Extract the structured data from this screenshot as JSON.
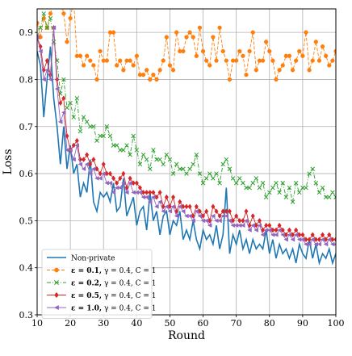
{
  "chart_data": {
    "type": "line",
    "xlabel": "Round",
    "ylabel": "Loss",
    "xlim": [
      10,
      100
    ],
    "ylim": [
      0.3,
      0.95
    ],
    "x_ticks": [
      "10",
      "20",
      "30",
      "40",
      "50",
      "60",
      "70",
      "80",
      "90",
      "100"
    ],
    "y_ticks": [
      "0.3",
      "0.4",
      "0.5",
      "0.6",
      "0.7",
      "0.8",
      "0.9"
    ],
    "grid": true,
    "legend_position": "lower-left",
    "x_start": 10,
    "series": [
      {
        "name": "Non-private",
        "label_parts": {
          "eps": "",
          "rest": "Non-private"
        },
        "color": "#1f77b4",
        "linestyle": "solid",
        "marker": "none",
        "values": [
          0.86,
          0.83,
          0.72,
          0.8,
          0.87,
          0.76,
          0.7,
          0.62,
          0.7,
          0.61,
          0.66,
          0.6,
          0.62,
          0.55,
          0.58,
          0.56,
          0.63,
          0.54,
          0.52,
          0.56,
          0.55,
          0.56,
          0.54,
          0.58,
          0.52,
          0.53,
          0.59,
          0.51,
          0.53,
          0.55,
          0.49,
          0.52,
          0.53,
          0.48,
          0.56,
          0.5,
          0.52,
          0.47,
          0.51,
          0.52,
          0.47,
          0.5,
          0.49,
          0.52,
          0.46,
          0.48,
          0.46,
          0.5,
          0.46,
          0.44,
          0.48,
          0.46,
          0.47,
          0.45,
          0.49,
          0.44,
          0.47,
          0.57,
          0.43,
          0.47,
          0.45,
          0.48,
          0.44,
          0.46,
          0.43,
          0.46,
          0.44,
          0.45,
          0.44,
          0.48,
          0.43,
          0.46,
          0.42,
          0.45,
          0.43,
          0.44,
          0.42,
          0.44,
          0.41,
          0.45,
          0.43,
          0.42,
          0.46,
          0.42,
          0.45,
          0.41,
          0.43,
          0.42,
          0.44,
          0.41,
          0.43,
          0.42,
          0.41,
          0.43,
          0.42,
          0.41,
          0.43,
          0.42,
          0.41,
          0.43,
          0.42,
          0.43,
          0.42,
          0.41,
          0.42,
          0.41,
          0.43,
          0.42,
          0.41,
          0.42,
          0.4,
          0.42,
          0.41,
          0.43,
          0.42,
          0.41,
          0.42,
          0.43,
          0.42,
          0.43,
          0.42,
          0.41,
          0.42,
          0.43,
          0.42,
          0.41,
          0.42,
          0.41,
          0.4,
          0.41,
          0.42,
          0.41,
          0.42,
          0.41,
          0.42,
          0.41,
          0.4,
          0.42,
          0.41,
          0.42,
          0.41,
          0.42,
          0.4,
          0.42,
          0.41,
          0.43,
          0.41,
          0.42,
          0.41,
          0.4,
          0.41,
          0.42,
          0.41,
          0.42,
          0.41,
          0.42,
          0.41,
          0.42,
          0.43,
          0.42,
          0.41,
          0.42,
          0.41,
          0.42,
          0.41,
          0.43,
          0.42,
          0.41,
          0.42,
          0.41,
          0.42,
          0.41,
          0.42,
          0.41
        ]
      },
      {
        "name": "ε = 0.1, γ = 0.4, C = 1",
        "label_parts": {
          "eps": "ε = 0.1,",
          "rest": " γ = 0.4, C = 1"
        },
        "color": "#ff7f0e",
        "linestyle": "dashed",
        "marker": "circle",
        "values": [
          0.92,
          0.89,
          0.93,
          0.91,
          0.94,
          0.96,
          0.97,
          0.97,
          0.94,
          0.88,
          0.93,
          0.97,
          0.85,
          0.85,
          0.83,
          0.85,
          0.84,
          0.83,
          0.8,
          0.86,
          0.84,
          0.84,
          0.9,
          0.9,
          0.83,
          0.84,
          0.82,
          0.84,
          0.84,
          0.83,
          0.85,
          0.81,
          0.81,
          0.82,
          0.8,
          0.81,
          0.8,
          0.82,
          0.84,
          0.89,
          0.83,
          0.82,
          0.9,
          0.86,
          0.86,
          0.89,
          0.9,
          0.89,
          0.85,
          0.91,
          0.86,
          0.84,
          0.83,
          0.89,
          0.84,
          0.91,
          0.86,
          0.84,
          0.8,
          0.84,
          0.84,
          0.86,
          0.85,
          0.81,
          0.86,
          0.9,
          0.82,
          0.84,
          0.84,
          0.88,
          0.86,
          0.84,
          0.8,
          0.82,
          0.83,
          0.85,
          0.85,
          0.82,
          0.84,
          0.86,
          0.85,
          0.9,
          0.82,
          0.84,
          0.88,
          0.84,
          0.87,
          0.85,
          0.83,
          0.84,
          0.86,
          0.82,
          0.88,
          0.9,
          0.95,
          0.93,
          0.88,
          0.87,
          0.87,
          0.88
        ]
      },
      {
        "name": "ε = 0.2, γ = 0.4, C = 1",
        "label_parts": {
          "eps": "ε = 0.2,",
          "rest": " γ = 0.4, C = 1"
        },
        "color": "#2ca02c",
        "linestyle": "dashdot",
        "marker": "x",
        "values": [
          0.89,
          0.91,
          0.94,
          0.91,
          0.93,
          0.88,
          0.84,
          0.77,
          0.8,
          0.74,
          0.75,
          0.72,
          0.76,
          0.69,
          0.72,
          0.71,
          0.7,
          0.7,
          0.67,
          0.68,
          0.68,
          0.7,
          0.68,
          0.66,
          0.66,
          0.65,
          0.65,
          0.66,
          0.64,
          0.68,
          0.65,
          0.62,
          0.64,
          0.63,
          0.61,
          0.65,
          0.63,
          0.63,
          0.62,
          0.64,
          0.63,
          0.6,
          0.62,
          0.61,
          0.61,
          0.6,
          0.61,
          0.62,
          0.64,
          0.6,
          0.58,
          0.59,
          0.6,
          0.59,
          0.6,
          0.58,
          0.62,
          0.63,
          0.61,
          0.59,
          0.58,
          0.59,
          0.58,
          0.57,
          0.57,
          0.58,
          0.59,
          0.57,
          0.58,
          0.55,
          0.56,
          0.57,
          0.58,
          0.56,
          0.58,
          0.55,
          0.57,
          0.54,
          0.58,
          0.56,
          0.57,
          0.57,
          0.6,
          0.61,
          0.58,
          0.56,
          0.57,
          0.55,
          0.55,
          0.56,
          0.55,
          0.56,
          0.55,
          0.55,
          0.56
        ]
      },
      {
        "name": "ε = 0.5, γ = 0.4, C = 1",
        "label_parts": {
          "eps": "ε = 0.5,",
          "rest": " γ = 0.4, C = 1"
        },
        "color": "#d62728",
        "linestyle": "solid",
        "marker": "diamond",
        "values": [
          0.89,
          0.87,
          0.82,
          0.84,
          0.81,
          0.91,
          0.8,
          0.75,
          0.76,
          0.68,
          0.65,
          0.66,
          0.67,
          0.63,
          0.63,
          0.64,
          0.62,
          0.63,
          0.61,
          0.6,
          0.62,
          0.6,
          0.6,
          0.59,
          0.58,
          0.59,
          0.6,
          0.57,
          0.59,
          0.58,
          0.58,
          0.57,
          0.56,
          0.56,
          0.56,
          0.56,
          0.55,
          0.56,
          0.53,
          0.55,
          0.53,
          0.55,
          0.52,
          0.54,
          0.53,
          0.53,
          0.53,
          0.51,
          0.53,
          0.52,
          0.51,
          0.52,
          0.5,
          0.53,
          0.52,
          0.51,
          0.52,
          0.52,
          0.52,
          0.5,
          0.51,
          0.5,
          0.5,
          0.52,
          0.49,
          0.51,
          0.49,
          0.5,
          0.48,
          0.49,
          0.49,
          0.48,
          0.48,
          0.49,
          0.48,
          0.47,
          0.48,
          0.47,
          0.48,
          0.47,
          0.47,
          0.46,
          0.46,
          0.47,
          0.46,
          0.46,
          0.47,
          0.46,
          0.47,
          0.46,
          0.46,
          0.46,
          0.46
        ]
      },
      {
        "name": "ε = 1.0, γ = 0.4, C = 1",
        "label_parts": {
          "eps": "ε = 1.0,",
          "rest": " γ = 0.4, C = 1"
        },
        "color": "#9467bd",
        "linestyle": "solid",
        "marker": "triangle-left",
        "values": [
          0.89,
          0.86,
          0.8,
          0.82,
          0.8,
          0.91,
          0.78,
          0.71,
          0.73,
          0.65,
          0.65,
          0.63,
          0.66,
          0.62,
          0.61,
          0.62,
          0.6,
          0.61,
          0.59,
          0.59,
          0.6,
          0.58,
          0.58,
          0.56,
          0.57,
          0.57,
          0.58,
          0.56,
          0.58,
          0.56,
          0.56,
          0.56,
          0.55,
          0.55,
          0.54,
          0.55,
          0.53,
          0.54,
          0.52,
          0.53,
          0.52,
          0.53,
          0.51,
          0.53,
          0.52,
          0.51,
          0.51,
          0.5,
          0.52,
          0.51,
          0.5,
          0.5,
          0.49,
          0.51,
          0.5,
          0.5,
          0.51,
          0.51,
          0.5,
          0.49,
          0.49,
          0.49,
          0.49,
          0.5,
          0.48,
          0.49,
          0.48,
          0.49,
          0.47,
          0.48,
          0.48,
          0.47,
          0.47,
          0.48,
          0.47,
          0.46,
          0.47,
          0.46,
          0.47,
          0.46,
          0.46,
          0.45,
          0.45,
          0.46,
          0.45,
          0.45,
          0.46,
          0.45,
          0.46,
          0.45,
          0.45,
          0.45,
          0.45
        ]
      }
    ]
  }
}
